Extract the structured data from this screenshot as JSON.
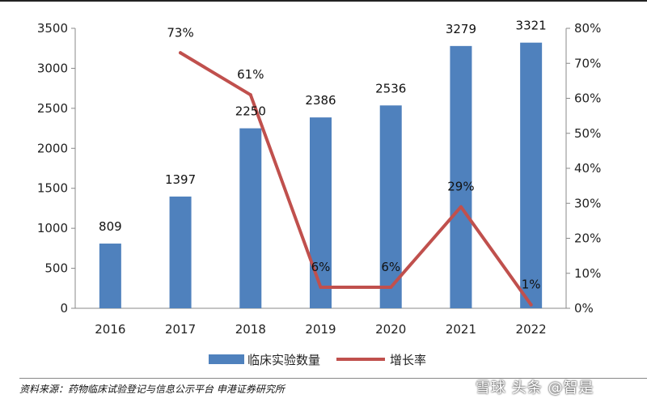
{
  "chart_data": {
    "type": "bar",
    "categories": [
      "2016",
      "2017",
      "2018",
      "2019",
      "2020",
      "2021",
      "2022"
    ],
    "series": [
      {
        "name": "临床实验数量",
        "type": "bar",
        "axis": "left",
        "color": "#4F81BD",
        "values": [
          809,
          1397,
          2250,
          2386,
          2536,
          3279,
          3321
        ],
        "labels": [
          "809",
          "1397",
          "2250",
          "2386",
          "2536",
          "3279",
          "3321"
        ]
      },
      {
        "name": "增长率",
        "type": "line",
        "axis": "right",
        "color": "#C0504D",
        "values": [
          null,
          73,
          61,
          6,
          6,
          29,
          1
        ],
        "labels": [
          "",
          "73%",
          "61%",
          "6%",
          "6%",
          "29%",
          "1%"
        ]
      }
    ],
    "y_left": {
      "min": 0,
      "max": 3500,
      "ticks": [
        "0",
        "500",
        "1000",
        "1500",
        "2000",
        "2500",
        "3000",
        "3500"
      ]
    },
    "y_right": {
      "min": 0,
      "max": 80,
      "ticks": [
        "0%",
        "10%",
        "20%",
        "30%",
        "40%",
        "50%",
        "60%",
        "70%",
        "80%"
      ]
    },
    "grid": false,
    "legend_position": "bottom"
  },
  "source": "资料来源：药物临床试验登记与信息公示平台 申港证券研究所",
  "watermark": "雪球 头条 @智是"
}
